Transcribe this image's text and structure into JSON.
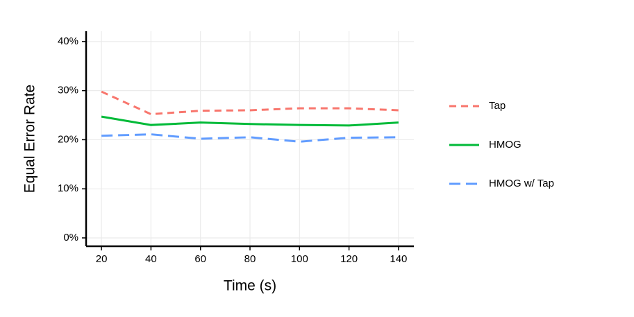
{
  "chart_data": {
    "type": "line",
    "x_label": "Time (s)",
    "y_label": "Equal Error Rate",
    "x": [
      20,
      40,
      60,
      80,
      100,
      120,
      140
    ],
    "series": [
      {
        "name": "Tap",
        "color": "#F8766D",
        "dash": "dashed",
        "values": [
          29.8,
          25.2,
          25.9,
          26.0,
          26.4,
          26.4,
          26.0
        ]
      },
      {
        "name": "HMOG",
        "color": "#00BA38",
        "dash": "solid",
        "values": [
          24.7,
          23.0,
          23.5,
          23.2,
          23.0,
          22.9,
          23.5
        ]
      },
      {
        "name": "HMOG w/ Tap",
        "color": "#619CFF",
        "dash": "longdash",
        "values": [
          20.8,
          21.1,
          20.2,
          20.5,
          19.6,
          20.4,
          20.5
        ]
      }
    ],
    "xlim": [
      13.8,
      146.2
    ],
    "xticks": [
      20,
      40,
      60,
      80,
      100,
      120,
      140
    ],
    "ylim": [
      -1.7,
      42.1
    ],
    "yticks": [
      {
        "value": 0,
        "label": "0%"
      },
      {
        "value": 10,
        "label": "10%"
      },
      {
        "value": 20,
        "label": "20%"
      },
      {
        "value": 30,
        "label": "30%"
      },
      {
        "value": 40,
        "label": "40%"
      }
    ],
    "grid": true,
    "legend": "right"
  }
}
